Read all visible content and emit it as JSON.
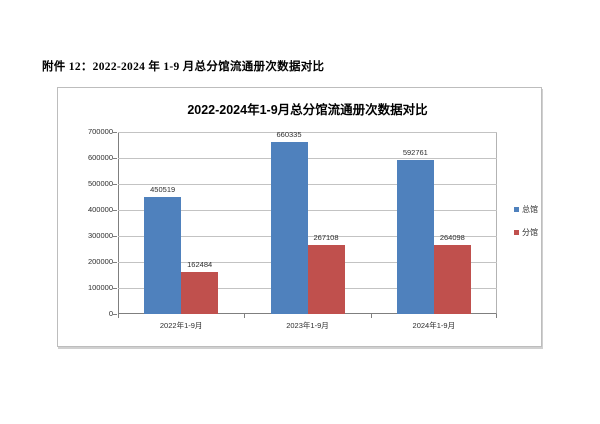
{
  "page": {
    "header": "附件 12：2022-2024 年 1-9 月总分馆流通册次数据对比"
  },
  "chart_data": {
    "type": "bar",
    "title": "2022-2024年1-9月总分馆流通册次数据对比",
    "categories": [
      "2022年1-9月",
      "2023年1-9月",
      "2024年1-9月"
    ],
    "series": [
      {
        "name": "总馆",
        "color": "#4F81BD",
        "values": [
          450519,
          660335,
          592761
        ]
      },
      {
        "name": "分馆",
        "color": "#C0504D",
        "values": [
          162484,
          267108,
          264098
        ]
      }
    ],
    "xlabel": "",
    "ylabel": "",
    "ylim": [
      0,
      700000
    ],
    "yticks": [
      0,
      100000,
      200000,
      300000,
      400000,
      500000,
      600000,
      700000
    ],
    "grid": true,
    "data_labels": true,
    "legend_position": "right"
  }
}
